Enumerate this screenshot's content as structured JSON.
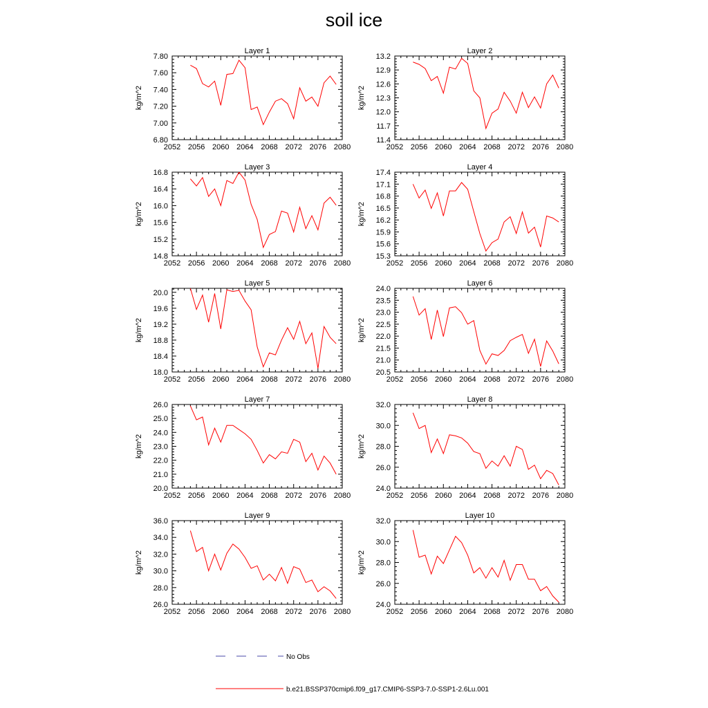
{
  "title": "soil ice",
  "legend": [
    {
      "label": "No Obs",
      "color": "#4a4aaa",
      "style": "dashed"
    },
    {
      "label": "b.e21.BSSP370cmip6.f09_g17.CMIP6-SSP3-7.0-SSP1-2.6Lu.001",
      "color": "#ff0000",
      "style": "solid"
    }
  ],
  "chart_data": [
    {
      "type": "line",
      "title": "Layer 1",
      "ylabel": "kg/m^2",
      "xlim": [
        2052,
        2080
      ],
      "ylim": [
        6.8,
        7.8
      ],
      "xticks": [
        "2052",
        "2056",
        "2060",
        "2064",
        "2068",
        "2072",
        "2076",
        "2080"
      ],
      "yticks": [
        "6.80",
        "7.00",
        "7.20",
        "7.40",
        "7.60",
        "7.80"
      ],
      "x": [
        2055,
        2056,
        2057,
        2058,
        2059,
        2060,
        2061,
        2062,
        2063,
        2064,
        2065,
        2066,
        2067,
        2068,
        2069,
        2070,
        2071,
        2072,
        2073,
        2074,
        2075,
        2076,
        2077,
        2078,
        2079
      ],
      "series": [
        {
          "values": [
            7.69,
            7.65,
            7.47,
            7.43,
            7.5,
            7.21,
            7.58,
            7.59,
            7.75,
            7.66,
            7.16,
            7.19,
            6.98,
            7.13,
            7.26,
            7.29,
            7.23,
            7.05,
            7.42,
            7.26,
            7.31,
            7.2,
            7.48,
            7.56,
            7.46
          ]
        }
      ]
    },
    {
      "type": "line",
      "title": "Layer 2",
      "ylabel": "kg/m^2",
      "xlim": [
        2052,
        2080
      ],
      "ylim": [
        11.4,
        13.2
      ],
      "xticks": [
        "2052",
        "2056",
        "2060",
        "2064",
        "2068",
        "2072",
        "2076",
        "2080"
      ],
      "yticks": [
        "11.4",
        "11.7",
        "12.0",
        "12.3",
        "12.6",
        "12.9",
        "13.2"
      ],
      "x": [
        2055,
        2056,
        2057,
        2058,
        2059,
        2060,
        2061,
        2062,
        2063,
        2064,
        2065,
        2066,
        2067,
        2068,
        2069,
        2070,
        2071,
        2072,
        2073,
        2074,
        2075,
        2076,
        2077,
        2078,
        2079
      ],
      "series": [
        {
          "values": [
            13.07,
            13.02,
            12.93,
            12.67,
            12.76,
            12.4,
            12.96,
            12.92,
            13.15,
            13.04,
            12.45,
            12.3,
            11.64,
            11.97,
            12.06,
            12.42,
            12.23,
            11.97,
            12.42,
            12.09,
            12.32,
            12.08,
            12.6,
            12.79,
            12.51
          ]
        }
      ]
    },
    {
      "type": "line",
      "title": "Layer 3",
      "ylabel": "kg/m^2",
      "xlim": [
        2052,
        2080
      ],
      "ylim": [
        14.8,
        16.8
      ],
      "xticks": [
        "2052",
        "2056",
        "2060",
        "2064",
        "2068",
        "2072",
        "2076",
        "2080"
      ],
      "yticks": [
        "14.8",
        "15.2",
        "15.6",
        "16.0",
        "16.4",
        "16.8"
      ],
      "x": [
        2055,
        2056,
        2057,
        2058,
        2059,
        2060,
        2061,
        2062,
        2063,
        2064,
        2065,
        2066,
        2067,
        2068,
        2069,
        2070,
        2071,
        2072,
        2073,
        2074,
        2075,
        2076,
        2077,
        2078,
        2079
      ],
      "series": [
        {
          "values": [
            16.64,
            16.47,
            16.67,
            16.22,
            16.4,
            16.0,
            16.6,
            16.53,
            16.8,
            16.61,
            16.03,
            15.67,
            15.0,
            15.31,
            15.38,
            15.87,
            15.82,
            15.37,
            15.96,
            15.45,
            15.76,
            15.42,
            16.06,
            16.2,
            16.01
          ]
        }
      ]
    },
    {
      "type": "line",
      "title": "Layer 4",
      "ylabel": "kg/m^2",
      "xlim": [
        2052,
        2080
      ],
      "ylim": [
        15.3,
        17.4
      ],
      "xticks": [
        "2052",
        "2056",
        "2060",
        "2064",
        "2068",
        "2072",
        "2076",
        "2080"
      ],
      "yticks": [
        "15.3",
        "15.6",
        "15.9",
        "16.2",
        "16.5",
        "16.8",
        "17.1",
        "17.4"
      ],
      "x": [
        2055,
        2056,
        2057,
        2058,
        2059,
        2060,
        2061,
        2062,
        2063,
        2064,
        2065,
        2066,
        2067,
        2068,
        2069,
        2070,
        2071,
        2072,
        2073,
        2074,
        2075,
        2076,
        2077,
        2078,
        2079
      ],
      "series": [
        {
          "values": [
            17.1,
            16.75,
            16.95,
            16.49,
            16.88,
            16.3,
            16.93,
            16.93,
            17.14,
            16.97,
            16.41,
            15.86,
            15.42,
            15.63,
            15.72,
            16.15,
            16.28,
            15.86,
            16.4,
            15.87,
            16.02,
            15.52,
            16.3,
            16.25,
            16.15
          ]
        }
      ]
    },
    {
      "type": "line",
      "title": "Layer 5",
      "ylabel": "kg/m^2",
      "xlim": [
        2052,
        2080
      ],
      "ylim": [
        18.0,
        20.1
      ],
      "xticks": [
        "2052",
        "2056",
        "2060",
        "2064",
        "2068",
        "2072",
        "2076",
        "2080"
      ],
      "yticks": [
        "18.0",
        "18.4",
        "18.8",
        "19.2",
        "19.6",
        "20.0"
      ],
      "x": [
        2055,
        2056,
        2057,
        2058,
        2059,
        2060,
        2061,
        2062,
        2063,
        2064,
        2065,
        2066,
        2067,
        2068,
        2069,
        2070,
        2071,
        2072,
        2073,
        2074,
        2075,
        2076,
        2077,
        2078,
        2079
      ],
      "series": [
        {
          "values": [
            20.1,
            19.57,
            19.93,
            19.25,
            19.97,
            19.08,
            20.06,
            20.02,
            20.05,
            19.78,
            19.56,
            18.63,
            18.13,
            18.48,
            18.43,
            18.8,
            19.11,
            18.82,
            19.27,
            18.71,
            18.98,
            18.09,
            19.14,
            18.87,
            18.71
          ]
        }
      ]
    },
    {
      "type": "line",
      "title": "Layer 6",
      "ylabel": "kg/m^2",
      "xlim": [
        2052,
        2080
      ],
      "ylim": [
        20.5,
        24.0
      ],
      "xticks": [
        "2052",
        "2056",
        "2060",
        "2064",
        "2068",
        "2072",
        "2076",
        "2080"
      ],
      "yticks": [
        "20.5",
        "21.0",
        "21.5",
        "22.0",
        "22.5",
        "23.0",
        "23.5",
        "24.0"
      ],
      "x": [
        2055,
        2056,
        2057,
        2058,
        2059,
        2060,
        2061,
        2062,
        2063,
        2064,
        2065,
        2066,
        2067,
        2068,
        2069,
        2070,
        2071,
        2072,
        2073,
        2074,
        2075,
        2076,
        2077,
        2078,
        2079
      ],
      "series": [
        {
          "values": [
            23.66,
            22.88,
            23.15,
            21.86,
            23.09,
            21.98,
            23.18,
            23.23,
            22.98,
            22.5,
            22.65,
            21.4,
            20.83,
            21.26,
            21.19,
            21.4,
            21.81,
            21.95,
            22.07,
            21.28,
            21.87,
            20.73,
            21.8,
            21.38,
            20.84
          ]
        }
      ]
    },
    {
      "type": "line",
      "title": "Layer 7",
      "ylabel": "kg/m^2",
      "xlim": [
        2052,
        2080
      ],
      "ylim": [
        20.0,
        26.0
      ],
      "xticks": [
        "2052",
        "2056",
        "2060",
        "2064",
        "2068",
        "2072",
        "2076",
        "2080"
      ],
      "yticks": [
        "20.0",
        "21.0",
        "22.0",
        "23.0",
        "24.0",
        "25.0",
        "26.0"
      ],
      "x": [
        2055,
        2056,
        2057,
        2058,
        2059,
        2060,
        2061,
        2062,
        2063,
        2064,
        2065,
        2066,
        2067,
        2068,
        2069,
        2070,
        2071,
        2072,
        2073,
        2074,
        2075,
        2076,
        2077,
        2078,
        2079
      ],
      "series": [
        {
          "values": [
            25.9,
            24.9,
            25.1,
            23.1,
            24.3,
            23.3,
            24.5,
            24.5,
            24.2,
            23.9,
            23.5,
            22.7,
            21.8,
            22.4,
            22.1,
            22.6,
            22.5,
            23.5,
            23.3,
            21.9,
            22.5,
            21.3,
            22.3,
            21.8,
            21.0
          ]
        }
      ]
    },
    {
      "type": "line",
      "title": "Layer 8",
      "ylabel": "kg/m^2",
      "xlim": [
        2052,
        2080
      ],
      "ylim": [
        24.0,
        32.0
      ],
      "xticks": [
        "2052",
        "2056",
        "2060",
        "2064",
        "2068",
        "2072",
        "2076",
        "2080"
      ],
      "yticks": [
        "24.0",
        "26.0",
        "28.0",
        "30.0",
        "32.0"
      ],
      "x": [
        2055,
        2056,
        2057,
        2058,
        2059,
        2060,
        2061,
        2062,
        2063,
        2064,
        2065,
        2066,
        2067,
        2068,
        2069,
        2070,
        2071,
        2072,
        2073,
        2074,
        2075,
        2076,
        2077,
        2078,
        2079
      ],
      "series": [
        {
          "values": [
            31.2,
            29.7,
            30.0,
            27.4,
            28.7,
            27.3,
            29.1,
            29.0,
            28.8,
            28.3,
            27.5,
            27.3,
            25.9,
            26.6,
            26.1,
            27.1,
            26.1,
            28.0,
            27.7,
            25.8,
            26.2,
            24.9,
            25.7,
            25.4,
            24.3
          ]
        }
      ]
    },
    {
      "type": "line",
      "title": "Layer 9",
      "ylabel": "kg/m^2",
      "xlim": [
        2052,
        2080
      ],
      "ylim": [
        26.0,
        36.0
      ],
      "xticks": [
        "2052",
        "2056",
        "2060",
        "2064",
        "2068",
        "2072",
        "2076",
        "2080"
      ],
      "yticks": [
        "26.0",
        "28.0",
        "30.0",
        "32.0",
        "34.0",
        "36.0"
      ],
      "x": [
        2055,
        2056,
        2057,
        2058,
        2059,
        2060,
        2061,
        2062,
        2063,
        2064,
        2065,
        2066,
        2067,
        2068,
        2069,
        2070,
        2071,
        2072,
        2073,
        2074,
        2075,
        2076,
        2077,
        2078,
        2079
      ],
      "series": [
        {
          "values": [
            34.8,
            32.3,
            32.8,
            30.0,
            32.0,
            30.1,
            32.1,
            33.2,
            32.6,
            31.6,
            30.3,
            30.6,
            28.9,
            29.6,
            28.8,
            30.4,
            28.5,
            30.5,
            30.2,
            28.6,
            28.9,
            27.5,
            28.1,
            27.6,
            26.7
          ]
        }
      ]
    },
    {
      "type": "line",
      "title": "Layer 10",
      "ylabel": "kg/m^2",
      "xlim": [
        2052,
        2080
      ],
      "ylim": [
        24.0,
        32.0
      ],
      "xticks": [
        "2052",
        "2056",
        "2060",
        "2064",
        "2068",
        "2072",
        "2076",
        "2080"
      ],
      "yticks": [
        "24.0",
        "26.0",
        "28.0",
        "30.0",
        "32.0"
      ],
      "x": [
        2055,
        2056,
        2057,
        2058,
        2059,
        2060,
        2061,
        2062,
        2063,
        2064,
        2065,
        2066,
        2067,
        2068,
        2069,
        2070,
        2071,
        2072,
        2073,
        2074,
        2075,
        2076,
        2077,
        2078,
        2079
      ],
      "series": [
        {
          "values": [
            31.1,
            28.5,
            28.7,
            26.9,
            28.6,
            27.9,
            29.2,
            30.5,
            29.9,
            28.7,
            27.0,
            27.5,
            26.5,
            27.5,
            26.6,
            28.2,
            26.3,
            27.8,
            27.8,
            26.4,
            26.4,
            25.3,
            25.7,
            24.8,
            24.2
          ]
        }
      ]
    }
  ]
}
